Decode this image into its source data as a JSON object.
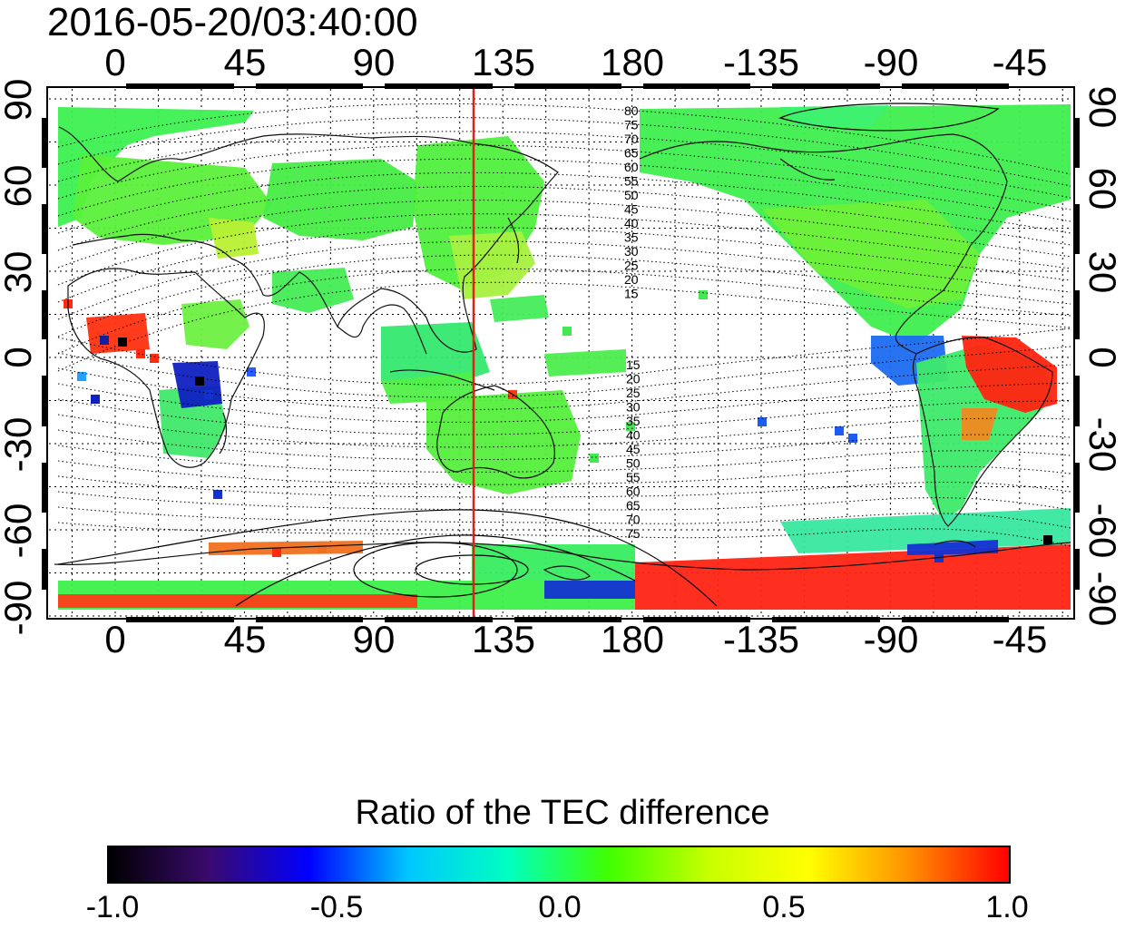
{
  "title": "2016-05-20/03:40:00",
  "map": {
    "top_lon_ticks": [
      "0",
      "45",
      "90",
      "135",
      "180",
      "-135",
      "-90",
      "-45"
    ],
    "bottom_lon_ticks": [
      "0",
      "45",
      "90",
      "135",
      "180",
      "-135",
      "-90",
      "-45"
    ],
    "left_lat_ticks": [
      "90",
      "60",
      "30",
      "0",
      "-30",
      "-60",
      "-90"
    ],
    "right_lat_ticks": [
      "90",
      "60",
      "30",
      "0",
      "-30",
      "-60",
      "-90"
    ],
    "contour_labels_north": [
      "80",
      "75",
      "70",
      "65",
      "60",
      "55",
      "50",
      "45",
      "40",
      "35",
      "30",
      "25",
      "20",
      "15"
    ],
    "contour_labels_south": [
      "15",
      "20",
      "25",
      "30",
      "35",
      "40",
      "45",
      "50",
      "55",
      "60",
      "65",
      "70",
      "75"
    ],
    "marker_line_color": "#e0201a"
  },
  "colorbar": {
    "title": "Ratio of the TEC difference",
    "ticks": [
      "-1.0",
      "-0.5",
      "0.0",
      "0.5",
      "1.0"
    ],
    "colors": [
      "#000000",
      "#3a0a6e",
      "#0000ff",
      "#00c8ff",
      "#00ffc0",
      "#40ff00",
      "#c8ff00",
      "#ffff00",
      "#ff9000",
      "#ff0000"
    ]
  }
}
